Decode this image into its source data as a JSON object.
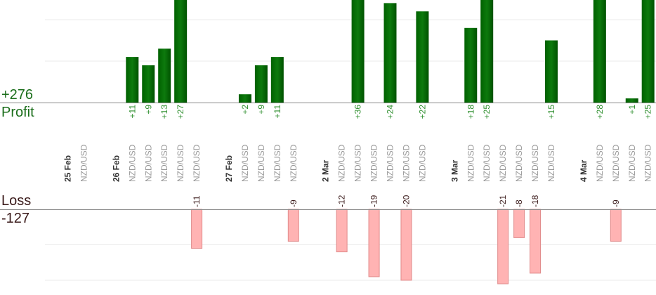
{
  "summary": {
    "profit_total": "+276",
    "profit_label": "Profit",
    "loss_label": "Loss",
    "loss_total": "-127"
  },
  "colors": {
    "profit_bar": "#0a6a0a",
    "profit_text": "#2f8f2f",
    "profit_label": "#1b6e1b",
    "loss_bar_fill": "#ffb3b3",
    "loss_bar_stroke": "#e08a8a",
    "loss_text": "#3a1a1a",
    "date_text": "#333333",
    "pair_text": "#999999"
  },
  "chart_data": {
    "type": "bar",
    "title": "",
    "xlabel": "",
    "ylabel": "",
    "ylim_profit": [
      0,
      30
    ],
    "ylim_loss": [
      -22,
      0
    ],
    "grid": true,
    "slots": [
      {
        "label": "25 Feb",
        "kind": "date"
      },
      {
        "label": "NZD/USD",
        "kind": "pair"
      },
      {
        "label": "",
        "kind": "blank"
      },
      {
        "label": "26 Feb",
        "kind": "date"
      },
      {
        "label": "NZD/USD",
        "kind": "pair",
        "profit": 11,
        "profit_label": "+11"
      },
      {
        "label": "NZD/USD",
        "kind": "pair",
        "profit": 9,
        "profit_label": "+9"
      },
      {
        "label": "NZD/USD",
        "kind": "pair",
        "profit": 13,
        "profit_label": "+13"
      },
      {
        "label": "NZD/USD",
        "kind": "pair",
        "profit": 27,
        "profit_label": "+27"
      },
      {
        "label": "NZD/USD",
        "kind": "pair",
        "loss": -11,
        "loss_label": "-11"
      },
      {
        "label": "",
        "kind": "blank"
      },
      {
        "label": "27 Feb",
        "kind": "date"
      },
      {
        "label": "NZD/USD",
        "kind": "pair",
        "profit": 2,
        "profit_label": "+2"
      },
      {
        "label": "NZD/USD",
        "kind": "pair",
        "profit": 9,
        "profit_label": "+9"
      },
      {
        "label": "NZD/USD",
        "kind": "pair",
        "profit": 11,
        "profit_label": "+11"
      },
      {
        "label": "NZD/USD",
        "kind": "pair",
        "loss": -9,
        "loss_label": "-9"
      },
      {
        "label": "",
        "kind": "blank"
      },
      {
        "label": "2 Mar",
        "kind": "date"
      },
      {
        "label": "NZD/USD",
        "kind": "pair",
        "loss": -12,
        "loss_label": "-12"
      },
      {
        "label": "NZD/USD",
        "kind": "pair",
        "profit": 36,
        "profit_label": "+36"
      },
      {
        "label": "NZD/USD",
        "kind": "pair",
        "loss": -19,
        "loss_label": "-19"
      },
      {
        "label": "NZD/USD",
        "kind": "pair",
        "profit": 24,
        "profit_label": "+24"
      },
      {
        "label": "NZD/USD",
        "kind": "pair",
        "loss": -20,
        "loss_label": "-20"
      },
      {
        "label": "NZD/USD",
        "kind": "pair",
        "profit": 22,
        "profit_label": "+22"
      },
      {
        "label": "",
        "kind": "blank"
      },
      {
        "label": "3 Mar",
        "kind": "date"
      },
      {
        "label": "NZD/USD",
        "kind": "pair",
        "profit": 18,
        "profit_label": "+18"
      },
      {
        "label": "NZD/USD",
        "kind": "pair",
        "profit": 25,
        "profit_label": "+25"
      },
      {
        "label": "NZD/USD",
        "kind": "pair",
        "loss": -21,
        "loss_label": "-21"
      },
      {
        "label": "NZD/USD",
        "kind": "pair",
        "loss": -8,
        "loss_label": "-8"
      },
      {
        "label": "NZD/USD",
        "kind": "pair",
        "loss": -18,
        "loss_label": "-18"
      },
      {
        "label": "NZD/USD",
        "kind": "pair",
        "profit": 15,
        "profit_label": "+15"
      },
      {
        "label": "",
        "kind": "blank"
      },
      {
        "label": "4 Mar",
        "kind": "date"
      },
      {
        "label": "NZD/USD",
        "kind": "pair",
        "profit": 28,
        "profit_label": "+28"
      },
      {
        "label": "NZD/USD",
        "kind": "pair",
        "loss": -9,
        "loss_label": "-9"
      },
      {
        "label": "NZD/USD",
        "kind": "pair",
        "profit": 1,
        "profit_label": "+1"
      },
      {
        "label": "NZD/USD",
        "kind": "pair",
        "profit": 25,
        "profit_label": "+25"
      }
    ]
  }
}
